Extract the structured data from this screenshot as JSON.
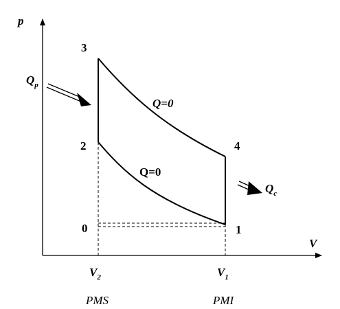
{
  "axes": {
    "y": "p",
    "x": "V"
  },
  "points": {
    "p3": "3",
    "p2": "2",
    "p4": "4",
    "p0": "0",
    "p1": "1"
  },
  "processes": {
    "compression": "Q=0",
    "expansion": "Q=0"
  },
  "heat_in": {
    "main": "Q",
    "sub": "p"
  },
  "heat_out": {
    "main": "Q",
    "sub": "c"
  },
  "volumes": {
    "v2": {
      "main": "V",
      "sub": "2"
    },
    "v1": {
      "main": "V",
      "sub": "1"
    }
  },
  "positions": {
    "top": "PMS",
    "bottom": "PMI"
  }
}
